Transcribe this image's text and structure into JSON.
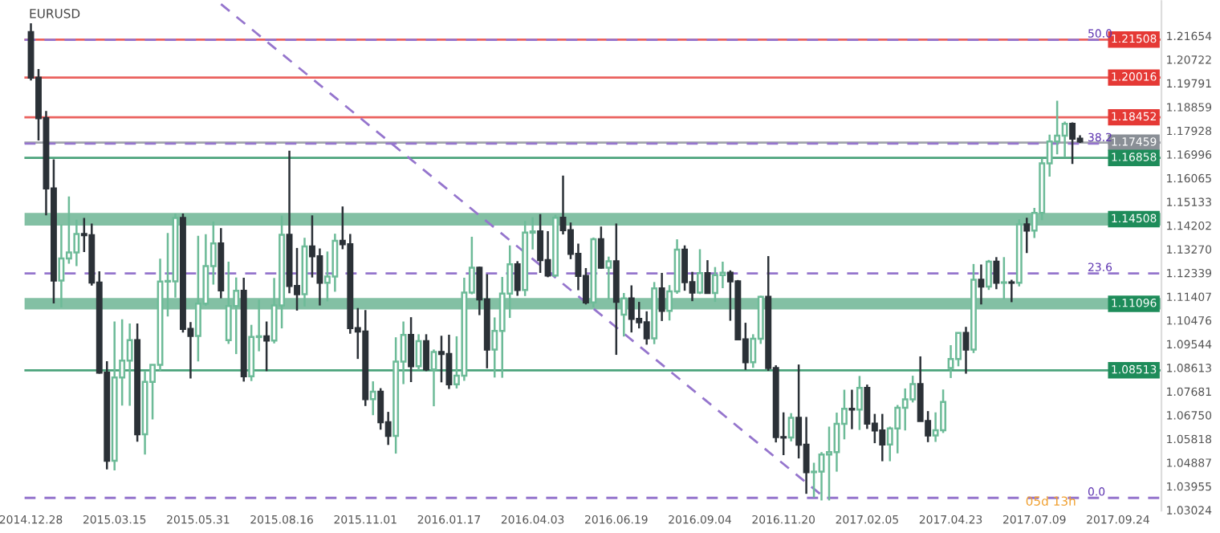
{
  "chart_data": {
    "type": "candlestick",
    "title": "EURUSD",
    "x": [
      "2014-12-28",
      "2015-01-04",
      "2015-01-11",
      "2015-01-18",
      "2015-01-25",
      "2015-02-01",
      "2015-02-08",
      "2015-02-15",
      "2015-02-22",
      "2015-03-01",
      "2015-03-08",
      "2015-03-15",
      "2015-03-22",
      "2015-03-29",
      "2015-04-05",
      "2015-04-12",
      "2015-04-19",
      "2015-04-26",
      "2015-05-03",
      "2015-05-10",
      "2015-05-17",
      "2015-05-24",
      "2015-05-31",
      "2015-06-07",
      "2015-06-14",
      "2015-06-21",
      "2015-06-28",
      "2015-07-05",
      "2015-07-12",
      "2015-07-19",
      "2015-07-26",
      "2015-08-02",
      "2015-08-09",
      "2015-08-16",
      "2015-08-23",
      "2015-08-30",
      "2015-09-06",
      "2015-09-13",
      "2015-09-20",
      "2015-09-27",
      "2015-10-04",
      "2015-10-11",
      "2015-10-18",
      "2015-10-25",
      "2015-11-01",
      "2015-11-08",
      "2015-11-15",
      "2015-11-22",
      "2015-11-29",
      "2015-12-06",
      "2015-12-13",
      "2015-12-20",
      "2015-12-27",
      "2016-01-03",
      "2016-01-10",
      "2016-01-17",
      "2016-01-24",
      "2016-01-31",
      "2016-02-07",
      "2016-02-14",
      "2016-02-21",
      "2016-02-28",
      "2016-03-06",
      "2016-03-13",
      "2016-03-20",
      "2016-03-27",
      "2016-04-03",
      "2016-04-10",
      "2016-04-17",
      "2016-04-24",
      "2016-05-01",
      "2016-05-08",
      "2016-05-15",
      "2016-05-22",
      "2016-05-29",
      "2016-06-05",
      "2016-06-12",
      "2016-06-19",
      "2016-06-26",
      "2016-07-03",
      "2016-07-10",
      "2016-07-17",
      "2016-07-24",
      "2016-07-31",
      "2016-08-07",
      "2016-08-14",
      "2016-08-21",
      "2016-08-28",
      "2016-09-04",
      "2016-09-11",
      "2016-09-18",
      "2016-09-25",
      "2016-10-02",
      "2016-10-09",
      "2016-10-16",
      "2016-10-23",
      "2016-10-30",
      "2016-11-06",
      "2016-11-13",
      "2016-11-20",
      "2016-11-27",
      "2016-12-04",
      "2016-12-11",
      "2016-12-18",
      "2016-12-25",
      "2017-01-01",
      "2017-01-08",
      "2017-01-15",
      "2017-01-22",
      "2017-01-29",
      "2017-02-05",
      "2017-02-12",
      "2017-02-19",
      "2017-02-26",
      "2017-03-05",
      "2017-03-12",
      "2017-03-19",
      "2017-03-26",
      "2017-04-02",
      "2017-04-09",
      "2017-04-16",
      "2017-04-23",
      "2017-04-30",
      "2017-05-07",
      "2017-05-14",
      "2017-05-21",
      "2017-05-28",
      "2017-06-04",
      "2017-06-11",
      "2017-06-18",
      "2017-06-25",
      "2017-07-02",
      "2017-07-09",
      "2017-07-16",
      "2017-07-23",
      "2017-07-30",
      "2017-08-06",
      "2017-08-13",
      "2017-08-20"
    ],
    "ohlc": [
      [
        1.218,
        1.2215,
        1.199,
        1.2001
      ],
      [
        1.2001,
        1.2035,
        1.1754,
        1.1842
      ],
      [
        1.1842,
        1.187,
        1.146,
        1.1566
      ],
      [
        1.1566,
        1.168,
        1.1114,
        1.1204
      ],
      [
        1.1204,
        1.1424,
        1.1098,
        1.1291
      ],
      [
        1.1291,
        1.1534,
        1.127,
        1.1314
      ],
      [
        1.1314,
        1.1443,
        1.1261,
        1.1387
      ],
      [
        1.1387,
        1.145,
        1.1316,
        1.1382
      ],
      [
        1.1382,
        1.1428,
        1.1184,
        1.1196
      ],
      [
        1.1196,
        1.124,
        1.0838,
        1.0842
      ],
      [
        1.0842,
        1.0887,
        1.0462,
        1.0496
      ],
      [
        1.0496,
        1.1043,
        1.0458,
        1.0823
      ],
      [
        1.0823,
        1.1052,
        1.0713,
        1.0889
      ],
      [
        1.0889,
        1.1035,
        1.0712,
        1.097
      ],
      [
        1.097,
        1.1035,
        1.0571,
        1.06
      ],
      [
        1.06,
        1.0849,
        1.052,
        1.0806
      ],
      [
        1.0806,
        1.0874,
        1.0658,
        1.0873
      ],
      [
        1.0873,
        1.129,
        1.0848,
        1.12
      ],
      [
        1.12,
        1.1391,
        1.1063,
        1.1201
      ],
      [
        1.1201,
        1.1467,
        1.1137,
        1.145
      ],
      [
        1.145,
        1.1467,
        1.1,
        1.1014
      ],
      [
        1.1014,
        1.1041,
        1.0819,
        1.0986
      ],
      [
        1.0986,
        1.138,
        1.0886,
        1.1113
      ],
      [
        1.1113,
        1.1386,
        1.1105,
        1.1261
      ],
      [
        1.1261,
        1.1436,
        1.1188,
        1.135
      ],
      [
        1.135,
        1.141,
        1.1134,
        1.1165
      ],
      [
        1.097,
        1.1278,
        1.0955,
        1.1104
      ],
      [
        1.1104,
        1.1216,
        1.0915,
        1.1164
      ],
      [
        1.1164,
        1.1215,
        1.0807,
        1.0828
      ],
      [
        1.0828,
        1.103,
        1.0809,
        1.0982
      ],
      [
        1.0982,
        1.1129,
        1.0926,
        1.0985
      ],
      [
        1.0985,
        1.1043,
        1.0848,
        1.0968
      ],
      [
        1.0968,
        1.1214,
        1.0957,
        1.1106
      ],
      [
        1.1106,
        1.1459,
        1.1016,
        1.1384
      ],
      [
        1.1384,
        1.1714,
        1.1154,
        1.1183
      ],
      [
        1.1183,
        1.1332,
        1.1086,
        1.115
      ],
      [
        1.115,
        1.1372,
        1.1102,
        1.1338
      ],
      [
        1.1338,
        1.146,
        1.1216,
        1.1299
      ],
      [
        1.1299,
        1.133,
        1.1106,
        1.1195
      ],
      [
        1.1195,
        1.1318,
        1.1122,
        1.122
      ],
      [
        1.122,
        1.1388,
        1.116,
        1.136
      ],
      [
        1.136,
        1.1495,
        1.1327,
        1.1347
      ],
      [
        1.1347,
        1.1387,
        1.0995,
        1.1017
      ],
      [
        1.1017,
        1.1096,
        1.0896,
        1.1004
      ],
      [
        1.1004,
        1.1088,
        1.0711,
        1.0738
      ],
      [
        1.0738,
        1.0808,
        1.0675,
        1.0767
      ],
      [
        1.0767,
        1.0781,
        1.0618,
        1.0647
      ],
      [
        1.0647,
        1.0688,
        1.0558,
        1.0594
      ],
      [
        1.0594,
        1.0981,
        1.0524,
        1.0885
      ],
      [
        1.0885,
        1.1043,
        1.0797,
        1.099
      ],
      [
        1.099,
        1.106,
        1.0805,
        1.0867
      ],
      [
        1.0867,
        1.0993,
        1.0852,
        1.0966
      ],
      [
        1.0966,
        1.0993,
        1.0848,
        1.0855
      ],
      [
        1.0855,
        1.0933,
        1.071,
        1.0923
      ],
      [
        1.0923,
        1.0987,
        1.0804,
        1.0915
      ],
      [
        1.0915,
        1.0991,
        1.0778,
        1.0796
      ],
      [
        1.0796,
        1.0985,
        1.078,
        1.083
      ],
      [
        1.083,
        1.1215,
        1.081,
        1.1157
      ],
      [
        1.1157,
        1.1376,
        1.115,
        1.1254
      ],
      [
        1.1254,
        1.1259,
        1.1068,
        1.113
      ],
      [
        1.113,
        1.1229,
        1.0859,
        1.0933
      ],
      [
        1.0933,
        1.1059,
        1.0823,
        1.1006
      ],
      [
        1.1006,
        1.1218,
        1.0822,
        1.1153
      ],
      [
        1.1153,
        1.1342,
        1.1057,
        1.1268
      ],
      [
        1.1268,
        1.128,
        1.1144,
        1.1167
      ],
      [
        1.1167,
        1.1438,
        1.1143,
        1.1392
      ],
      [
        1.1392,
        1.1453,
        1.1326,
        1.1397
      ],
      [
        1.1397,
        1.1465,
        1.1234,
        1.1284
      ],
      [
        1.1284,
        1.1398,
        1.1217,
        1.1224
      ],
      [
        1.1224,
        1.1462,
        1.1218,
        1.1451
      ],
      [
        1.1451,
        1.1616,
        1.1385,
        1.1402
      ],
      [
        1.1402,
        1.1432,
        1.1288,
        1.1309
      ],
      [
        1.1309,
        1.1349,
        1.1166,
        1.1222
      ],
      [
        1.1222,
        1.1253,
        1.111,
        1.1118
      ],
      [
        1.1118,
        1.1373,
        1.1098,
        1.1366
      ],
      [
        1.1366,
        1.1416,
        1.1251,
        1.1254
      ],
      [
        1.1254,
        1.1298,
        1.1131,
        1.128
      ],
      [
        1.128,
        1.1428,
        1.0912,
        1.112
      ],
      [
        1.107,
        1.1155,
        1.0984,
        1.1134
      ],
      [
        1.1134,
        1.1185,
        1.1,
        1.1053
      ],
      [
        1.1053,
        1.112,
        1.1016,
        1.104
      ],
      [
        1.104,
        1.1083,
        1.0952,
        1.0977
      ],
      [
        1.0977,
        1.1198,
        1.0954,
        1.1173
      ],
      [
        1.1173,
        1.1234,
        1.1045,
        1.1085
      ],
      [
        1.1085,
        1.1186,
        1.1047,
        1.1161
      ],
      [
        1.1161,
        1.1366,
        1.1152,
        1.1325
      ],
      [
        1.1325,
        1.1342,
        1.1164,
        1.1198
      ],
      [
        1.1198,
        1.1238,
        1.1123,
        1.1157
      ],
      [
        1.1157,
        1.1327,
        1.1151,
        1.1233
      ],
      [
        1.1233,
        1.1284,
        1.1154,
        1.1155
      ],
      [
        1.1155,
        1.1257,
        1.112,
        1.1225
      ],
      [
        1.1225,
        1.1278,
        1.1174,
        1.1235
      ],
      [
        1.1235,
        1.1244,
        1.1046,
        1.1201
      ],
      [
        1.1201,
        1.1206,
        1.0973,
        1.0973
      ],
      [
        1.0973,
        1.1038,
        1.0853,
        1.0883
      ],
      [
        1.0883,
        1.0993,
        1.0861,
        1.0975
      ],
      [
        1.0975,
        1.1144,
        1.0955,
        1.114
      ],
      [
        1.114,
        1.13,
        1.0849,
        1.086
      ],
      [
        1.086,
        1.0871,
        1.0568,
        1.0589
      ],
      [
        1.0589,
        1.0686,
        1.0518,
        1.0587
      ],
      [
        1.0587,
        1.0683,
        1.0572,
        1.0665
      ],
      [
        1.0665,
        1.0874,
        1.0505,
        1.0559
      ],
      [
        1.0559,
        1.0668,
        1.0366,
        1.0451
      ],
      [
        1.0451,
        1.0488,
        1.0352,
        1.0453
      ],
      [
        1.0453,
        1.053,
        1.034,
        1.052
      ],
      [
        1.052,
        1.063,
        1.034,
        1.053
      ],
      [
        1.053,
        1.0685,
        1.0453,
        1.0641
      ],
      [
        1.0641,
        1.0775,
        1.058,
        1.07
      ],
      [
        1.07,
        1.0775,
        1.062,
        1.0697
      ],
      [
        1.0697,
        1.0829,
        1.0617,
        1.0782
      ],
      [
        1.0782,
        1.0795,
        1.0621,
        1.0642
      ],
      [
        1.0642,
        1.068,
        1.0565,
        1.0615
      ],
      [
        1.0615,
        1.068,
        1.0494,
        1.056
      ],
      [
        1.056,
        1.063,
        1.0494,
        1.0623
      ],
      [
        1.0623,
        1.0715,
        1.0525,
        1.0704
      ],
      [
        1.0704,
        1.078,
        1.0615,
        1.0737
      ],
      [
        1.0737,
        1.083,
        1.0725,
        1.0797
      ],
      [
        1.0797,
        1.0906,
        1.0651,
        1.0652
      ],
      [
        1.0652,
        1.0691,
        1.0569,
        1.0595
      ],
      [
        1.0595,
        1.0686,
        1.057,
        1.0616
      ],
      [
        1.0616,
        1.0776,
        1.0605,
        1.0727
      ],
      [
        1.086,
        1.095,
        1.0821,
        1.0896
      ],
      [
        1.0896,
        1.1,
        1.0867,
        1.0998
      ],
      [
        1.0998,
        1.1022,
        1.0838,
        1.0933
      ],
      [
        1.0933,
        1.1269,
        1.0919,
        1.1207
      ],
      [
        1.1207,
        1.1267,
        1.111,
        1.118
      ],
      [
        1.118,
        1.1285,
        1.1167,
        1.1278
      ],
      [
        1.1278,
        1.1296,
        1.117,
        1.1195
      ],
      [
        1.1195,
        1.1296,
        1.1131,
        1.1197
      ],
      [
        1.1197,
        1.1207,
        1.1119,
        1.1195
      ],
      [
        1.1195,
        1.1445,
        1.1181,
        1.1425
      ],
      [
        1.1425,
        1.1451,
        1.1312,
        1.14
      ],
      [
        1.14,
        1.1489,
        1.1371,
        1.147
      ],
      [
        1.147,
        1.1683,
        1.1441,
        1.1664
      ],
      [
        1.1664,
        1.1777,
        1.1612,
        1.175
      ],
      [
        1.175,
        1.191,
        1.17,
        1.1773
      ],
      [
        1.1773,
        1.1828,
        1.1688,
        1.182
      ],
      [
        1.182,
        1.1825,
        1.1662,
        1.1761
      ],
      [
        1.1761,
        1.1775,
        1.1745,
        1.175
      ]
    ],
    "series": [
      {
        "type": "line",
        "x": [
          "2015-06-21",
          "2016-12-25"
        ],
        "values": [
          1.229,
          1.0361
        ],
        "color": "#9575cd",
        "line_style": "dashed"
      }
    ],
    "ref_lines": [
      {
        "axis": "y",
        "value": 1.21508,
        "label": "1.21508",
        "color": "#e53935"
      },
      {
        "axis": "y",
        "value": 1.215,
        "color": "#9575cd",
        "line_style": "dashed"
      },
      {
        "axis": "y",
        "value": 1.20016,
        "label": "1.20016",
        "color": "#e53935"
      },
      {
        "axis": "y",
        "value": 1.18452,
        "label": "1.18452",
        "color": "#e53935"
      },
      {
        "axis": "y",
        "value": 1.17459,
        "label": "1.17459",
        "color": "#8a8f96"
      },
      {
        "axis": "y",
        "value": 1.1742,
        "color": "#9575cd",
        "line_style": "dashed"
      },
      {
        "axis": "y",
        "value": 1.16858,
        "label": "1.16858",
        "color": "#1e8c5a"
      },
      {
        "axis": "y",
        "value": 1.1232,
        "color": "#9575cd",
        "line_style": "dashed"
      },
      {
        "axis": "y",
        "value": 1.08513,
        "label": "1.08513",
        "color": "#1e8c5a"
      },
      {
        "axis": "y",
        "value": 1.035,
        "color": "#9575cd",
        "line_style": "dashed"
      }
    ],
    "bands": [
      {
        "axis": "y",
        "from": 1.142,
        "to": 1.147,
        "label": "1.14508",
        "color": "#1e8c5a"
      },
      {
        "axis": "y",
        "from": 1.109,
        "to": 1.1135,
        "label": "1.11096",
        "color": "#1e8c5a"
      }
    ],
    "annotations": [
      "05d 13h",
      {
        "text": "50.0",
        "x": "2017-08-27",
        "y": 1.215
      },
      {
        "text": "38.2",
        "x": "2017-08-27",
        "y": 1.1742
      },
      {
        "text": "23.6",
        "x": "2017-08-27",
        "y": 1.1232
      },
      {
        "text": "0.0",
        "x": "2017-08-27",
        "y": 1.035
      }
    ],
    "xlim": [
      "2014-12-22",
      "2017-11-03"
    ],
    "xticks": [
      {
        "value": "2014-12-28",
        "label": "2014.12.28"
      },
      {
        "value": "2015-03-15",
        "label": "2015.03.15"
      },
      {
        "value": "2015-05-31",
        "label": "2015.05.31"
      },
      {
        "value": "2015-08-16",
        "label": "2015.08.16"
      },
      {
        "value": "2015-11-01",
        "label": "2015.11.01"
      },
      {
        "value": "2016-01-17",
        "label": "2016.01.17"
      },
      {
        "value": "2016-04-03",
        "label": "2016.04.03"
      },
      {
        "value": "2016-06-19",
        "label": "2016.06.19"
      },
      {
        "value": "2016-09-04",
        "label": "2016.09.04"
      },
      {
        "value": "2016-11-20",
        "label": "2016.11.20"
      },
      {
        "value": "2017-02-05",
        "label": "2017.02.05"
      },
      {
        "value": "2017-04-23",
        "label": "2017.04.23"
      },
      {
        "value": "2017-07-09",
        "label": "2017.07.09"
      },
      {
        "value": "2017-09-24",
        "label": "2017.09.24"
      }
    ],
    "ylim": [
      1.03,
      1.2302
    ],
    "yticks": [
      1.21654,
      1.20722,
      1.19791,
      1.18859,
      1.17928,
      1.16996,
      1.16065,
      1.15133,
      1.14202,
      {
        "value": 1.1327,
        "label": "1.13270"
      },
      1.12339,
      1.11407,
      1.10476,
      1.09544,
      1.08613,
      1.07681,
      {
        "value": 1.0675,
        "label": "1.06750"
      },
      1.05818,
      1.04887,
      1.03955,
      1.03024
    ],
    "grid": false
  }
}
